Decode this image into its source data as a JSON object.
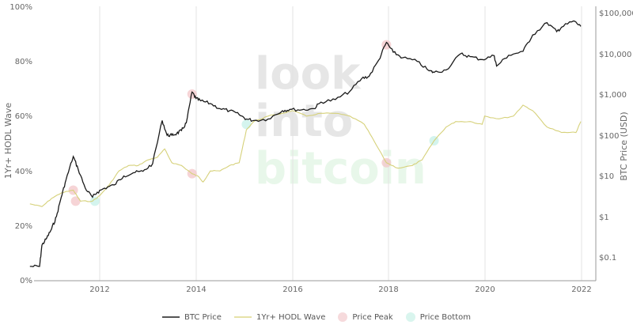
{
  "chart_data": {
    "type": "line",
    "title": "",
    "xlabel": "",
    "ylabel_left": "1Yr+ HODL Wave",
    "ylabel_right": "BTC Price (USD)",
    "x_ticks": [
      "2012",
      "2014",
      "2016",
      "2018",
      "2020",
      "2022"
    ],
    "y_left_ticks": [
      "0%",
      "20%",
      "40%",
      "60%",
      "80%",
      "100%"
    ],
    "y_left_range": [
      0,
      100
    ],
    "y_right_ticks": [
      "$0.1",
      "$1",
      "$10",
      "$100",
      "$1,000",
      "$10,000",
      "$100,000"
    ],
    "y_right_scale": "log",
    "y_right_range": [
      0.05,
      150000
    ],
    "grid": "vertical only",
    "legend_position": "bottom",
    "legend": [
      "BTC Price",
      "1Yr+ HODL Wave",
      "Price Peak",
      "Price Bottom"
    ],
    "watermark": [
      "look",
      "into",
      "bitcoin"
    ],
    "series": [
      {
        "name": "BTC Price",
        "axis": "right",
        "color": "#1a1a1a",
        "x": [
          2010.55,
          2010.75,
          2010.8,
          2010.9,
          2011.0,
          2011.1,
          2011.2,
          2011.3,
          2011.45,
          2011.55,
          2011.7,
          2011.85,
          2011.95,
          2012.1,
          2012.3,
          2012.5,
          2012.7,
          2012.9,
          2013.1,
          2013.3,
          2013.4,
          2013.5,
          2013.6,
          2013.7,
          2013.8,
          2013.92,
          2014.0,
          2014.1,
          2014.3,
          2014.5,
          2014.7,
          2014.9,
          2015.05,
          2015.2,
          2015.5,
          2015.8,
          2015.95,
          2016.2,
          2016.45,
          2016.6,
          2016.9,
          2017.2,
          2017.45,
          2017.6,
          2017.8,
          2017.96,
          2018.1,
          2018.3,
          2018.6,
          2018.85,
          2018.95,
          2019.2,
          2019.5,
          2019.7,
          2019.95,
          2020.2,
          2020.25,
          2020.5,
          2020.8,
          2021.0,
          2021.3,
          2021.5,
          2021.6,
          2021.85,
          2022.0
        ],
        "values": [
          0.06,
          0.06,
          0.2,
          0.3,
          0.5,
          1,
          3,
          8,
          30,
          15,
          5,
          3,
          4,
          5,
          6,
          10,
          12,
          13,
          20,
          230,
          100,
          100,
          110,
          130,
          200,
          1150,
          800,
          700,
          600,
          450,
          400,
          320,
          250,
          230,
          250,
          400,
          430,
          420,
          450,
          650,
          750,
          1200,
          2500,
          2800,
          7000,
          19000,
          11000,
          8000,
          6500,
          3800,
          3500,
          4000,
          10000,
          8500,
          7200,
          9000,
          5000,
          9200,
          11500,
          29000,
          58000,
          35000,
          45000,
          64000,
          47000
        ]
      },
      {
        "name": "1Yr+ HODL Wave",
        "axis": "left",
        "color": "#d6d17a",
        "x": [
          2010.55,
          2010.8,
          2011.0,
          2011.2,
          2011.45,
          2011.6,
          2011.85,
          2012.0,
          2012.2,
          2012.4,
          2012.6,
          2012.8,
          2013.0,
          2013.2,
          2013.35,
          2013.5,
          2013.7,
          2013.92,
          2014.05,
          2014.15,
          2014.3,
          2014.5,
          2014.7,
          2014.9,
          2015.05,
          2015.2,
          2015.5,
          2015.8,
          2016.0,
          2016.3,
          2016.6,
          2016.9,
          2017.2,
          2017.5,
          2017.7,
          2017.96,
          2018.2,
          2018.5,
          2018.7,
          2018.95,
          2019.2,
          2019.4,
          2019.7,
          2019.95,
          2020.0,
          2020.3,
          2020.6,
          2020.8,
          2021.0,
          2021.3,
          2021.6,
          2021.9,
          2022.0
        ],
        "values": [
          28,
          27,
          30,
          32,
          33,
          29,
          29,
          31,
          35,
          40,
          42,
          42,
          44,
          45,
          48,
          43,
          42,
          39,
          38,
          36,
          40,
          40,
          42,
          43,
          55,
          58,
          60,
          61,
          62,
          60,
          61,
          61,
          60,
          57,
          51,
          43,
          41,
          42,
          44,
          51,
          56,
          58,
          58,
          57,
          60,
          59,
          60,
          64,
          62,
          56,
          54,
          54,
          58
        ]
      },
      {
        "name": "Price Peak",
        "type": "scatter",
        "color": "#f3c6c8",
        "points": [
          {
            "x": 2011.45,
            "price": 30,
            "hodl": 33
          },
          {
            "x": 2011.5,
            "price": 4,
            "hodl": 29
          },
          {
            "x": 2013.92,
            "price": 1150,
            "hodl": 39
          },
          {
            "x": 2013.92,
            "price": 1150,
            "hodl": 68
          },
          {
            "x": 2017.96,
            "price": 19000,
            "hodl": 43
          },
          {
            "x": 2017.96,
            "price": 19000,
            "hodl": 86
          }
        ]
      },
      {
        "name": "Price Bottom",
        "type": "scatter",
        "color": "#c6f0e8",
        "points": [
          {
            "x": 2011.9,
            "price": 2.5,
            "hodl": 29
          },
          {
            "x": 2015.05,
            "price": 200,
            "hodl": 57
          },
          {
            "x": 2018.95,
            "price": 3400,
            "hodl": 51
          }
        ]
      }
    ]
  },
  "axes": {
    "left_title": "1Yr+ HODL Wave",
    "right_title": "BTC Price (USD)",
    "left_ticks": [
      "100%",
      "80%",
      "60%",
      "40%",
      "20%",
      "0%"
    ],
    "right_ticks": [
      "$100,000",
      "$10,000",
      "$1,000",
      "$100",
      "$10",
      "$1",
      "$0.1"
    ],
    "x_ticks": [
      "2012",
      "2014",
      "2016",
      "2018",
      "2020",
      "2022"
    ]
  },
  "legend": {
    "items": [
      {
        "label": "BTC Price",
        "color": "#1a1a1a",
        "kind": "line"
      },
      {
        "label": "1Yr+ HODL Wave",
        "color": "#d6d17a",
        "kind": "line"
      },
      {
        "label": "Price Peak",
        "color": "#f3c6c8",
        "kind": "dot"
      },
      {
        "label": "Price Bottom",
        "color": "#c6f0e8",
        "kind": "dot"
      }
    ]
  },
  "watermark": {
    "line1": "look",
    "line2": "into",
    "line3": "bitcoin"
  }
}
